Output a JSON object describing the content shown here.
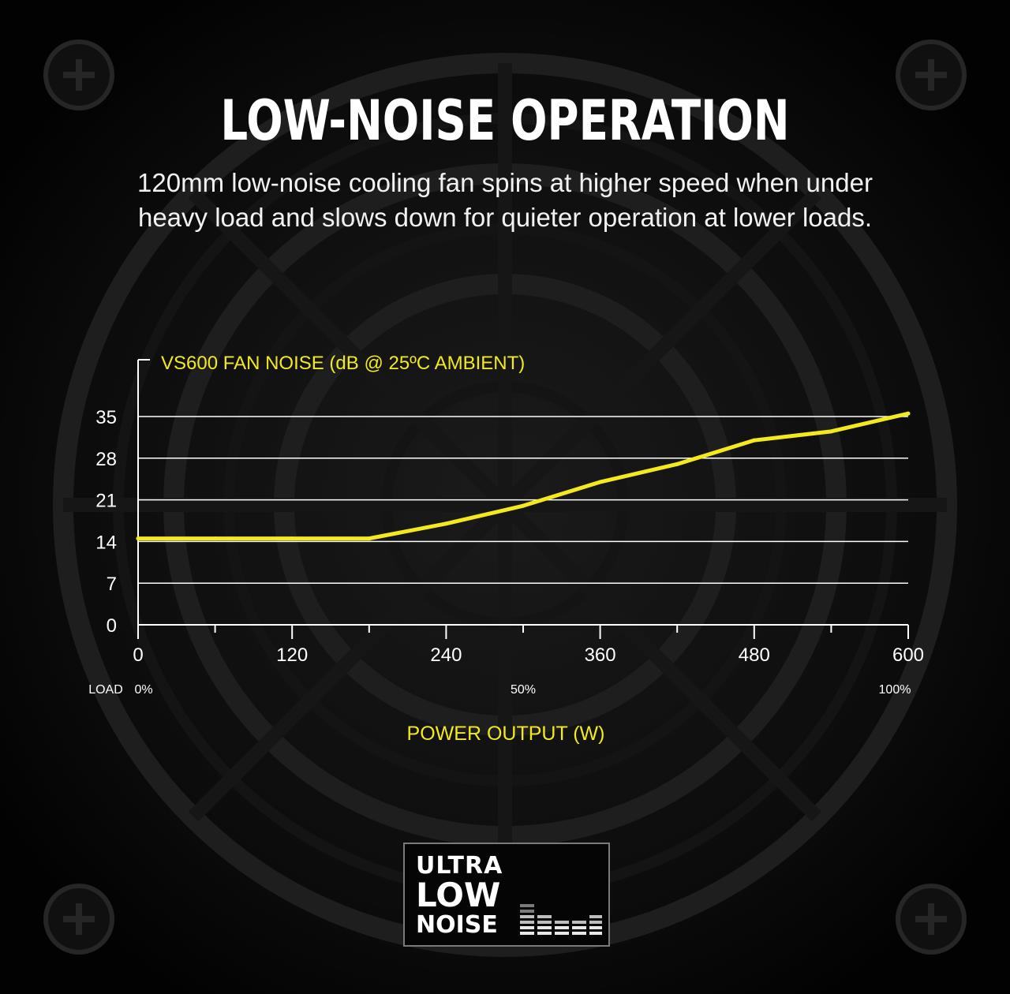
{
  "header": {
    "title": "LOW-NOISE OPERATION",
    "subtitle_line1": "120mm low-noise cooling fan spins at higher speed when under",
    "subtitle_line2": "heavy load and slows down for quieter operation at lower loads."
  },
  "colors": {
    "accent_yellow": "#f2ea1e",
    "background": "#070707",
    "gridline": "#ffffff"
  },
  "chart_data": {
    "type": "line",
    "title": "VS600 FAN NOISE (dB @ 25ºC AMBIENT)",
    "xlabel": "POWER OUTPUT (W)",
    "ylabel": "",
    "xlim": [
      0,
      600
    ],
    "ylim": [
      0,
      35
    ],
    "x_ticks": [
      "0",
      "120",
      "240",
      "360",
      "480",
      "600"
    ],
    "y_ticks": [
      "0",
      "7",
      "14",
      "21",
      "28",
      "35"
    ],
    "grid": true,
    "load_labels": [
      "LOAD",
      "0%",
      "50%",
      "100%"
    ],
    "series": [
      {
        "x": [
          0,
          60,
          120,
          180,
          240,
          300,
          360,
          420,
          480,
          540,
          600
        ],
        "y": [
          14.5,
          14.5,
          14.5,
          14.5,
          17,
          20,
          24,
          27,
          31,
          32.5,
          35.5
        ]
      }
    ]
  },
  "badge": {
    "line1": "ULTRA",
    "line2": "LOW",
    "line3": "NOISE"
  }
}
